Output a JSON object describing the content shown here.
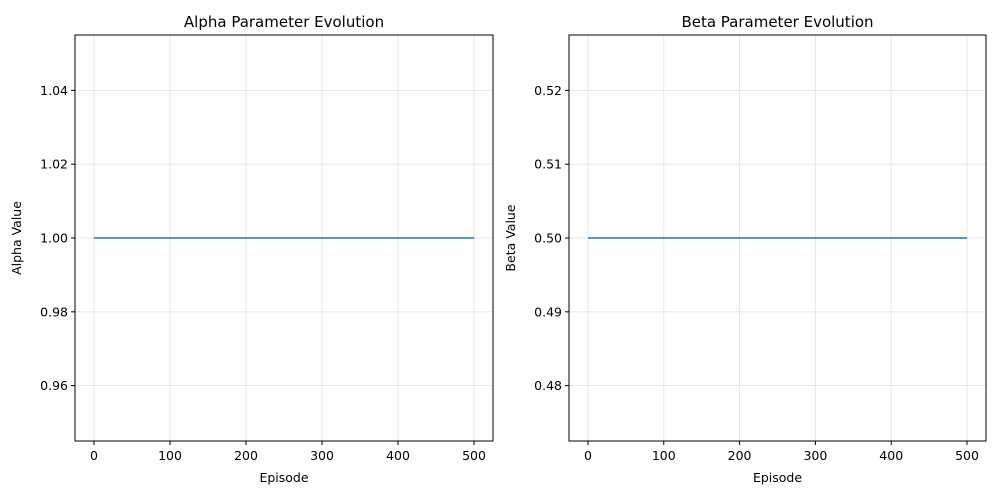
{
  "chart_data": [
    {
      "type": "line",
      "title": "Alpha Parameter Evolution",
      "xlabel": "Episode",
      "ylabel": "Alpha Value",
      "xlim": [
        -25,
        525
      ],
      "ylim": [
        0.945,
        1.055
      ],
      "xticks": [
        0,
        100,
        200,
        300,
        400,
        500
      ],
      "xtick_labels": [
        "0",
        "100",
        "200",
        "300",
        "400",
        "500"
      ],
      "yticks": [
        0.96,
        0.98,
        1.0,
        1.02,
        1.04
      ],
      "ytick_labels": [
        "0.96",
        "0.98",
        "1.00",
        "1.02",
        "1.04"
      ],
      "grid": true,
      "series": [
        {
          "color": "#1f77b4",
          "x": [
            0,
            500
          ],
          "y": [
            1.0,
            1.0
          ]
        }
      ]
    },
    {
      "type": "line",
      "title": "Beta Parameter Evolution",
      "xlabel": "Episode",
      "ylabel": "Beta Value",
      "xlim": [
        -25,
        525
      ],
      "ylim": [
        0.4725,
        0.5275
      ],
      "xticks": [
        0,
        100,
        200,
        300,
        400,
        500
      ],
      "xtick_labels": [
        "0",
        "100",
        "200",
        "300",
        "400",
        "500"
      ],
      "yticks": [
        0.48,
        0.49,
        0.5,
        0.51,
        0.52
      ],
      "ytick_labels": [
        "0.48",
        "0.49",
        "0.50",
        "0.51",
        "0.52"
      ],
      "grid": true,
      "series": [
        {
          "color": "#1f77b4",
          "x": [
            0,
            500
          ],
          "y": [
            0.5,
            0.5
          ]
        }
      ]
    }
  ]
}
